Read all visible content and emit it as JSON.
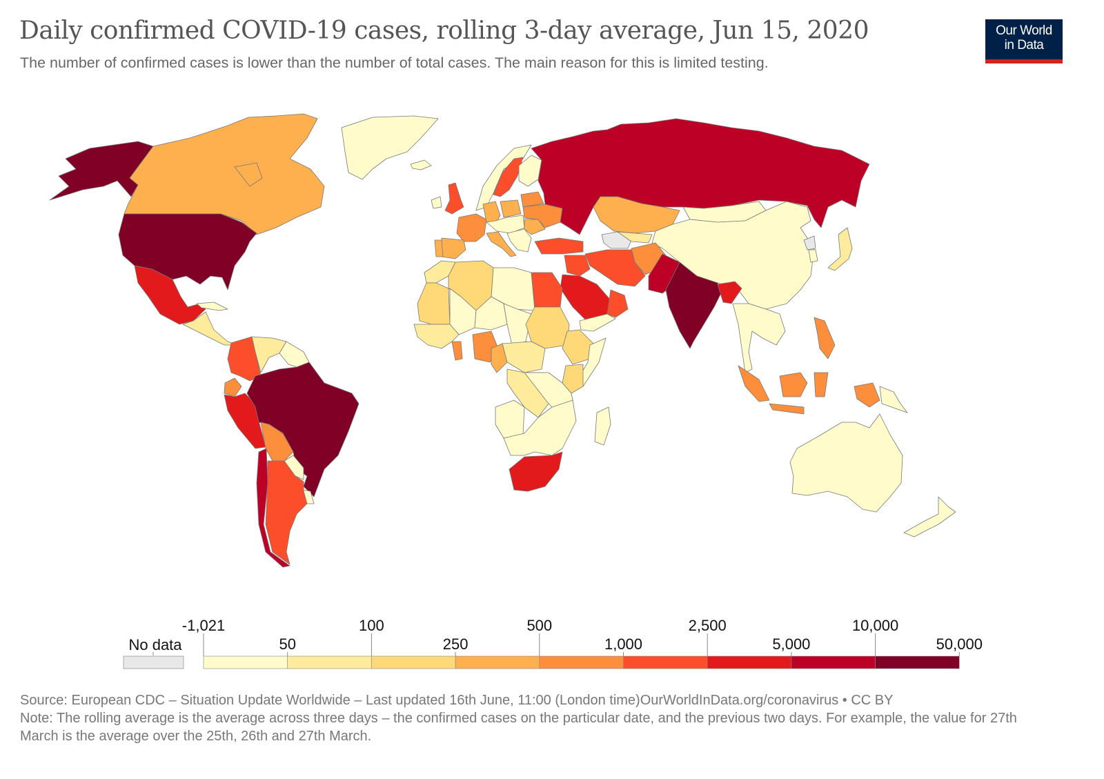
{
  "header": {
    "title": "Daily confirmed COVID-19 cases, rolling 3-day average, Jun 15, 2020",
    "subtitle": "The number of confirmed cases is lower than the number of total cases. The main reason for this is limited testing."
  },
  "logo": {
    "line1": "Our World",
    "line2": "in Data",
    "bg": "#002147",
    "accent": "#ce261e"
  },
  "colors": {
    "nodata": "#e8e8e8",
    "bins": [
      "#fffbca",
      "#ffeb9c",
      "#ffd978",
      "#feb04e",
      "#fd8e3c",
      "#fc4e2a",
      "#e31a1c",
      "#bd0026",
      "#800026"
    ],
    "border": "#777777"
  },
  "chart_data": {
    "type": "choropleth",
    "title": "Daily confirmed COVID-19 cases, rolling 3-day average, Jun 15, 2020",
    "legend": {
      "no_data_label": "No data",
      "breaks_upper": [
        "-1,021",
        "100",
        "500",
        "2,500",
        "10,000"
      ],
      "breaks_lower": [
        "50",
        "250",
        "1,000",
        "5,000",
        "50,000"
      ],
      "bins": [
        {
          "min": -1021,
          "max": 50
        },
        {
          "min": 50,
          "max": 100
        },
        {
          "min": 100,
          "max": 250
        },
        {
          "min": 250,
          "max": 500
        },
        {
          "min": 500,
          "max": 1000
        },
        {
          "min": 1000,
          "max": 2500
        },
        {
          "min": 2500,
          "max": 5000
        },
        {
          "min": 5000,
          "max": 10000
        },
        {
          "min": 10000,
          "max": 50000
        }
      ]
    },
    "regions": [
      {
        "name": "United States",
        "bin": 8
      },
      {
        "name": "Alaska",
        "bin": 8
      },
      {
        "name": "Canada",
        "bin": 3
      },
      {
        "name": "Greenland",
        "bin": 0
      },
      {
        "name": "Iceland",
        "bin": 0
      },
      {
        "name": "Mexico",
        "bin": 6
      },
      {
        "name": "Central America",
        "bin": 1
      },
      {
        "name": "Cuba",
        "bin": 0
      },
      {
        "name": "Colombia",
        "bin": 5
      },
      {
        "name": "Venezuela",
        "bin": 1
      },
      {
        "name": "Guianas",
        "bin": 0
      },
      {
        "name": "Ecuador",
        "bin": 4
      },
      {
        "name": "Peru",
        "bin": 6
      },
      {
        "name": "Brazil",
        "bin": 8
      },
      {
        "name": "Bolivia",
        "bin": 4
      },
      {
        "name": "Paraguay",
        "bin": 0
      },
      {
        "name": "Uruguay",
        "bin": 0
      },
      {
        "name": "Chile",
        "bin": 7
      },
      {
        "name": "Argentina",
        "bin": 5
      },
      {
        "name": "Russia",
        "bin": 7
      },
      {
        "name": "Kazakhstan",
        "bin": 3
      },
      {
        "name": "China",
        "bin": 0
      },
      {
        "name": "Mongolia",
        "bin": 0
      },
      {
        "name": "India",
        "bin": 8
      },
      {
        "name": "Pakistan",
        "bin": 7
      },
      {
        "name": "Bangladesh",
        "bin": 6
      },
      {
        "name": "Afghanistan",
        "bin": 4
      },
      {
        "name": "Iran",
        "bin": 5
      },
      {
        "name": "Iraq",
        "bin": 5
      },
      {
        "name": "Saudi Arabia",
        "bin": 6
      },
      {
        "name": "Oman",
        "bin": 5
      },
      {
        "name": "Yemen",
        "bin": 0
      },
      {
        "name": "Turkey",
        "bin": 5
      },
      {
        "name": "Turkmenistan",
        "bin": -1
      },
      {
        "name": "Uzbekistan",
        "bin": 1
      },
      {
        "name": "Japan",
        "bin": 1
      },
      {
        "name": "North Korea",
        "bin": -1
      },
      {
        "name": "South Korea",
        "bin": 0
      },
      {
        "name": "Southeast Asia",
        "bin": 0
      },
      {
        "name": "Philippines",
        "bin": 4
      },
      {
        "name": "Indonesia",
        "bin": 4
      },
      {
        "name": "Papua New Guinea",
        "bin": 0
      },
      {
        "name": "Australia",
        "bin": 0
      },
      {
        "name": "New Zealand",
        "bin": 0
      },
      {
        "name": "United Kingdom",
        "bin": 5
      },
      {
        "name": "Ireland",
        "bin": 0
      },
      {
        "name": "France",
        "bin": 4
      },
      {
        "name": "Spain",
        "bin": 3
      },
      {
        "name": "Portugal",
        "bin": 3
      },
      {
        "name": "Italy",
        "bin": 3
      },
      {
        "name": "Germany",
        "bin": 3
      },
      {
        "name": "Poland",
        "bin": 3
      },
      {
        "name": "Ukraine",
        "bin": 4
      },
      {
        "name": "Belarus",
        "bin": 4
      },
      {
        "name": "Romania",
        "bin": 3
      },
      {
        "name": "Sweden",
        "bin": 5
      },
      {
        "name": "Norway",
        "bin": 0
      },
      {
        "name": "Finland",
        "bin": 0
      },
      {
        "name": "Central Europe",
        "bin": 0
      },
      {
        "name": "Balkans",
        "bin": 0
      },
      {
        "name": "Egypt",
        "bin": 5
      },
      {
        "name": "Algeria",
        "bin": 2
      },
      {
        "name": "Morocco",
        "bin": 1
      },
      {
        "name": "Mauritania",
        "bin": 2
      },
      {
        "name": "Libya",
        "bin": 0
      },
      {
        "name": "Mali",
        "bin": 0
      },
      {
        "name": "Niger",
        "bin": 0
      },
      {
        "name": "Chad",
        "bin": 0
      },
      {
        "name": "Sudan",
        "bin": 2
      },
      {
        "name": "Nigeria",
        "bin": 4
      },
      {
        "name": "Ghana",
        "bin": 4
      },
      {
        "name": "Cameroon",
        "bin": 3
      },
      {
        "name": "Ethiopia",
        "bin": 2
      },
      {
        "name": "Somalia",
        "bin": 0
      },
      {
        "name": "Kenya",
        "bin": 2
      },
      {
        "name": "DR Congo",
        "bin": 1
      },
      {
        "name": "Central Africa",
        "bin": 1
      },
      {
        "name": "Angola",
        "bin": 0
      },
      {
        "name": "Southern Africa",
        "bin": 0
      },
      {
        "name": "South Africa",
        "bin": 6
      },
      {
        "name": "Madagascar",
        "bin": 0
      }
    ]
  },
  "footer": {
    "source": "Source: European CDC – Situation Update Worldwide – Last updated 16th June, 11:00 (London time)OurWorldInData.org/coronavirus • CC BY",
    "note": "Note: The rolling average is the average across three days – the confirmed cases on the particular date, and the previous two days. For example, the value for 27th March is the average over the 25th, 26th and 27th March."
  }
}
